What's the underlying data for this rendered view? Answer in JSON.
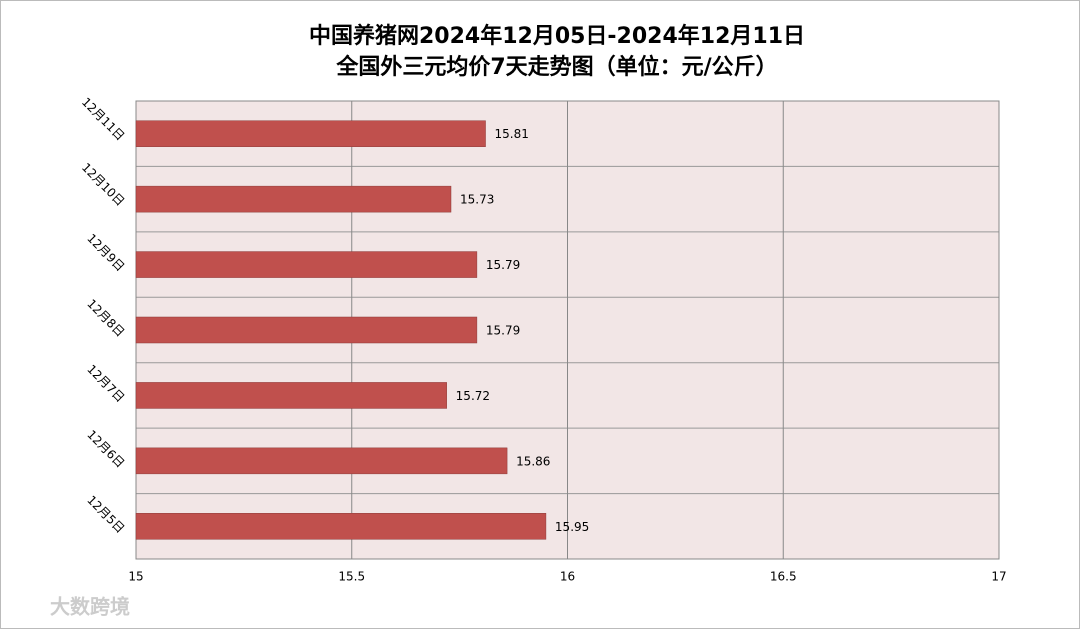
{
  "chart_data": {
    "type": "bar",
    "orientation": "horizontal",
    "title": "中国养猪网2024年12月05日-2024年12月11日",
    "subtitle": "全国外三元均价7天走势图（单位：元/公斤）",
    "categories": [
      "12月11日",
      "12月10日",
      "12月9日",
      "12月8日",
      "12月7日",
      "12月6日",
      "12月5日"
    ],
    "values": [
      15.81,
      15.73,
      15.79,
      15.79,
      15.72,
      15.86,
      15.95
    ],
    "color": "#c0504d",
    "xlim": [
      15,
      17
    ],
    "xticks": [
      15,
      15.5,
      16,
      16.5,
      17
    ],
    "grid": true,
    "watermark": "大数跨境"
  }
}
